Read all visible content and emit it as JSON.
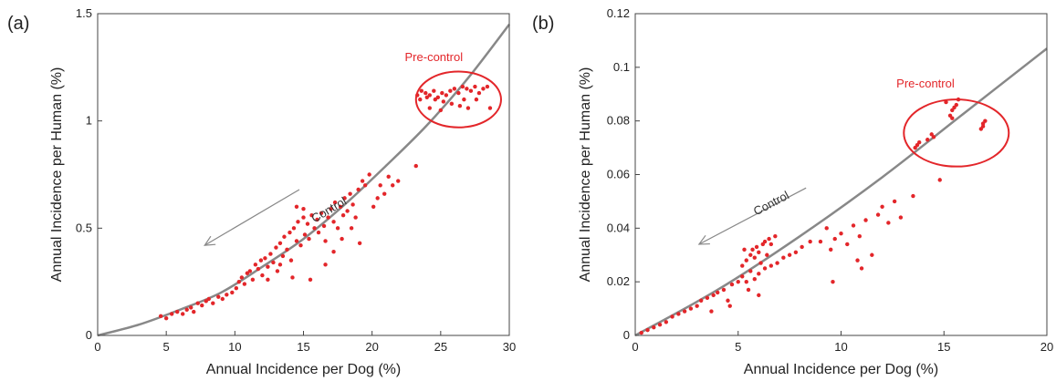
{
  "chart_data": [
    {
      "type": "scatter",
      "panel_label": "(a)",
      "xlabel": "Annual Incidence per Dog (%)",
      "ylabel": "Annual Incidence per Human (%)",
      "xlim": [
        0,
        30
      ],
      "ylim": [
        0,
        1.5
      ],
      "xticks": [
        0,
        5,
        10,
        15,
        20,
        25,
        30
      ],
      "yticks": [
        0,
        0.5,
        1,
        1.5
      ],
      "xtick_labels": [
        "0",
        "5",
        "10",
        "15",
        "20",
        "25",
        "30"
      ],
      "ytick_labels": [
        "0",
        "0.5",
        "1",
        "1.5"
      ],
      "grid": false,
      "point_color": "#e3262a",
      "curve_color": "#888888",
      "fit_curve": [
        [
          0,
          0
        ],
        [
          3,
          0.05
        ],
        [
          6,
          0.12
        ],
        [
          9,
          0.2
        ],
        [
          12,
          0.32
        ],
        [
          15,
          0.45
        ],
        [
          18,
          0.61
        ],
        [
          21,
          0.79
        ],
        [
          24,
          0.98
        ],
        [
          27,
          1.2
        ],
        [
          30,
          1.45
        ]
      ],
      "annotations": [
        {
          "text": "Pre-control",
          "x": 24.5,
          "y": 1.28,
          "color": "#e3262a"
        },
        {
          "text": "Control",
          "x": 17,
          "y": 0.57,
          "color": "#333333"
        }
      ],
      "ellipse": {
        "cx": 26.3,
        "cy": 1.1,
        "rx": 3.1,
        "ry": 0.13
      },
      "arrow": {
        "from": [
          14.7,
          0.68
        ],
        "to": [
          7.8,
          0.42
        ]
      },
      "points": [
        [
          4.6,
          0.09
        ],
        [
          5.0,
          0.08
        ],
        [
          5.4,
          0.1
        ],
        [
          5.8,
          0.11
        ],
        [
          6.2,
          0.1
        ],
        [
          6.5,
          0.12
        ],
        [
          6.8,
          0.13
        ],
        [
          7.0,
          0.11
        ],
        [
          7.3,
          0.15
        ],
        [
          7.6,
          0.14
        ],
        [
          7.9,
          0.16
        ],
        [
          8.1,
          0.17
        ],
        [
          8.4,
          0.15
        ],
        [
          8.8,
          0.18
        ],
        [
          9.1,
          0.17
        ],
        [
          9.4,
          0.19
        ],
        [
          9.8,
          0.2
        ],
        [
          10.1,
          0.22
        ],
        [
          10.3,
          0.25
        ],
        [
          10.5,
          0.27
        ],
        [
          10.7,
          0.24
        ],
        [
          10.9,
          0.29
        ],
        [
          11.1,
          0.3
        ],
        [
          11.3,
          0.26
        ],
        [
          11.5,
          0.33
        ],
        [
          11.7,
          0.31
        ],
        [
          11.9,
          0.35
        ],
        [
          12.0,
          0.28
        ],
        [
          12.2,
          0.36
        ],
        [
          12.4,
          0.32
        ],
        [
          12.6,
          0.38
        ],
        [
          12.8,
          0.34
        ],
        [
          13.0,
          0.41
        ],
        [
          13.1,
          0.3
        ],
        [
          13.3,
          0.43
        ],
        [
          13.5,
          0.37
        ],
        [
          13.6,
          0.46
        ],
        [
          13.8,
          0.4
        ],
        [
          14.0,
          0.48
        ],
        [
          14.1,
          0.35
        ],
        [
          14.3,
          0.5
        ],
        [
          14.5,
          0.44
        ],
        [
          14.6,
          0.53
        ],
        [
          14.8,
          0.42
        ],
        [
          15.0,
          0.55
        ],
        [
          15.1,
          0.47
        ],
        [
          15.3,
          0.52
        ],
        [
          15.4,
          0.45
        ],
        [
          15.6,
          0.56
        ],
        [
          15.8,
          0.5
        ],
        [
          16.0,
          0.54
        ],
        [
          16.1,
          0.48
        ],
        [
          16.3,
          0.57
        ],
        [
          16.5,
          0.51
        ],
        [
          16.6,
          0.44
        ],
        [
          16.8,
          0.55
        ],
        [
          17.0,
          0.59
        ],
        [
          17.2,
          0.53
        ],
        [
          17.3,
          0.62
        ],
        [
          17.5,
          0.5
        ],
        [
          17.7,
          0.6
        ],
        [
          17.9,
          0.56
        ],
        [
          18.0,
          0.64
        ],
        [
          18.2,
          0.58
        ],
        [
          18.4,
          0.66
        ],
        [
          18.6,
          0.61
        ],
        [
          18.8,
          0.55
        ],
        [
          19.0,
          0.68
        ],
        [
          19.3,
          0.72
        ],
        [
          19.5,
          0.7
        ],
        [
          19.8,
          0.75
        ],
        [
          20.1,
          0.6
        ],
        [
          20.4,
          0.64
        ],
        [
          20.6,
          0.7
        ],
        [
          20.9,
          0.66
        ],
        [
          21.2,
          0.74
        ],
        [
          21.5,
          0.7
        ],
        [
          21.9,
          0.72
        ],
        [
          23.2,
          0.79
        ],
        [
          12.4,
          0.26
        ],
        [
          13.3,
          0.33
        ],
        [
          14.2,
          0.27
        ],
        [
          15.5,
          0.26
        ],
        [
          16.6,
          0.33
        ],
        [
          17.2,
          0.39
        ],
        [
          15.0,
          0.59
        ],
        [
          14.5,
          0.6
        ],
        [
          17.8,
          0.45
        ],
        [
          18.5,
          0.5
        ],
        [
          19.1,
          0.43
        ],
        [
          23.3,
          1.12
        ],
        [
          23.6,
          1.14
        ],
        [
          23.9,
          1.13
        ],
        [
          24.2,
          1.12
        ],
        [
          24.5,
          1.14
        ],
        [
          24.8,
          1.11
        ],
        [
          25.1,
          1.13
        ],
        [
          25.4,
          1.12
        ],
        [
          25.7,
          1.14
        ],
        [
          26.0,
          1.15
        ],
        [
          26.3,
          1.13
        ],
        [
          26.6,
          1.16
        ],
        [
          26.9,
          1.15
        ],
        [
          27.2,
          1.14
        ],
        [
          27.5,
          1.16
        ],
        [
          27.8,
          1.13
        ],
        [
          28.1,
          1.15
        ],
        [
          23.5,
          1.1
        ],
        [
          24.0,
          1.11
        ],
        [
          24.6,
          1.1
        ],
        [
          25.2,
          1.09
        ],
        [
          25.8,
          1.08
        ],
        [
          26.4,
          1.07
        ],
        [
          27.0,
          1.06
        ],
        [
          27.6,
          1.1
        ],
        [
          28.6,
          1.06
        ],
        [
          28.4,
          1.16
        ],
        [
          25.0,
          1.05
        ],
        [
          24.2,
          1.06
        ],
        [
          26.7,
          1.1
        ]
      ]
    },
    {
      "type": "scatter",
      "panel_label": "(b)",
      "xlabel": "Annual Incidence per Dog (%)",
      "ylabel": "Annual Incidence per Human (%)",
      "xlim": [
        0,
        20
      ],
      "ylim": [
        0,
        0.12
      ],
      "xticks": [
        0,
        5,
        10,
        15,
        20
      ],
      "yticks": [
        0,
        0.02,
        0.04,
        0.06,
        0.08,
        0.1,
        0.12
      ],
      "xtick_labels": [
        "0",
        "5",
        "10",
        "15",
        "20"
      ],
      "ytick_labels": [
        "0",
        "0.02",
        "0.04",
        "0.06",
        "0.08",
        "0.1",
        "0.12"
      ],
      "grid": false,
      "point_color": "#e3262a",
      "curve_color": "#888888",
      "fit_curve": [
        [
          0,
          0
        ],
        [
          4,
          0.017
        ],
        [
          8,
          0.037
        ],
        [
          12,
          0.059
        ],
        [
          16,
          0.083
        ],
        [
          20,
          0.107
        ]
      ],
      "annotations": [
        {
          "text": "Pre-control",
          "x": 14.1,
          "y": 0.0925,
          "color": "#e3262a"
        },
        {
          "text": "Control",
          "x": 6.7,
          "y": 0.048,
          "color": "#333333"
        }
      ],
      "ellipse": {
        "cx": 15.6,
        "cy": 0.0755,
        "rx": 2.55,
        "ry": 0.0125
      },
      "arrow": {
        "from": [
          8.3,
          0.055
        ],
        "to": [
          3.1,
          0.034
        ]
      },
      "points": [
        [
          0.3,
          0.001
        ],
        [
          0.6,
          0.002
        ],
        [
          0.9,
          0.003
        ],
        [
          1.2,
          0.004
        ],
        [
          1.5,
          0.005
        ],
        [
          1.8,
          0.007
        ],
        [
          2.1,
          0.008
        ],
        [
          2.4,
          0.009
        ],
        [
          2.7,
          0.01
        ],
        [
          3.0,
          0.011
        ],
        [
          3.2,
          0.013
        ],
        [
          3.5,
          0.014
        ],
        [
          3.8,
          0.015
        ],
        [
          4.0,
          0.016
        ],
        [
          4.3,
          0.017
        ],
        [
          4.5,
          0.013
        ],
        [
          4.7,
          0.019
        ],
        [
          5.0,
          0.02
        ],
        [
          5.2,
          0.022
        ],
        [
          5.4,
          0.02
        ],
        [
          5.6,
          0.024
        ],
        [
          5.8,
          0.021
        ],
        [
          6.0,
          0.023
        ],
        [
          6.3,
          0.025
        ],
        [
          6.6,
          0.026
        ],
        [
          6.9,
          0.027
        ],
        [
          7.2,
          0.029
        ],
        [
          7.5,
          0.03
        ],
        [
          7.8,
          0.031
        ],
        [
          8.1,
          0.033
        ],
        [
          8.5,
          0.035
        ],
        [
          3.7,
          0.009
        ],
        [
          4.6,
          0.011
        ],
        [
          5.5,
          0.017
        ],
        [
          6.0,
          0.015
        ],
        [
          5.2,
          0.026
        ],
        [
          5.4,
          0.028
        ],
        [
          5.6,
          0.03
        ],
        [
          5.7,
          0.032
        ],
        [
          5.9,
          0.033
        ],
        [
          6.0,
          0.031
        ],
        [
          6.2,
          0.034
        ],
        [
          6.3,
          0.035
        ],
        [
          6.5,
          0.036
        ],
        [
          6.6,
          0.034
        ],
        [
          6.8,
          0.037
        ],
        [
          5.3,
          0.032
        ],
        [
          5.8,
          0.029
        ],
        [
          6.1,
          0.027
        ],
        [
          6.4,
          0.03
        ],
        [
          9.0,
          0.035
        ],
        [
          9.3,
          0.04
        ],
        [
          9.5,
          0.032
        ],
        [
          9.7,
          0.036
        ],
        [
          10.0,
          0.038
        ],
        [
          10.3,
          0.034
        ],
        [
          10.6,
          0.041
        ],
        [
          10.9,
          0.037
        ],
        [
          11.2,
          0.043
        ],
        [
          11.5,
          0.03
        ],
        [
          11.8,
          0.045
        ],
        [
          12.0,
          0.048
        ],
        [
          12.3,
          0.042
        ],
        [
          12.6,
          0.05
        ],
        [
          12.9,
          0.044
        ],
        [
          13.5,
          0.052
        ],
        [
          11.0,
          0.025
        ],
        [
          9.6,
          0.02
        ],
        [
          10.8,
          0.028
        ],
        [
          14.8,
          0.058
        ],
        [
          13.6,
          0.07
        ],
        [
          13.7,
          0.071
        ],
        [
          13.8,
          0.072
        ],
        [
          14.2,
          0.073
        ],
        [
          14.4,
          0.075
        ],
        [
          14.5,
          0.074
        ],
        [
          15.3,
          0.082
        ],
        [
          15.4,
          0.084
        ],
        [
          15.5,
          0.085
        ],
        [
          15.6,
          0.086
        ],
        [
          15.7,
          0.088
        ],
        [
          15.4,
          0.081
        ],
        [
          16.8,
          0.077
        ],
        [
          16.9,
          0.079
        ],
        [
          17.0,
          0.08
        ],
        [
          16.9,
          0.078
        ],
        [
          15.1,
          0.087
        ]
      ]
    }
  ]
}
